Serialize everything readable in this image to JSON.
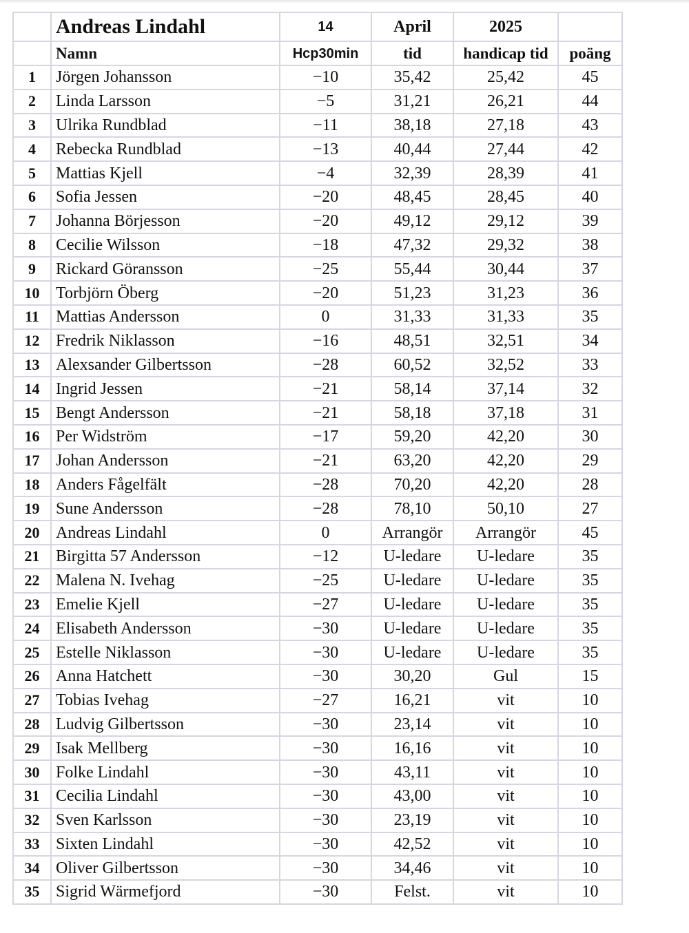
{
  "header": {
    "title": "Andreas Lindahl",
    "day": "14",
    "month": "April",
    "year": "2025",
    "columns": [
      "Namn",
      "Hcp30min",
      "tid",
      "handicap tid",
      "poäng"
    ]
  },
  "rows": [
    [
      "1",
      "Jörgen Johansson",
      "−10",
      "35,42",
      "25,42",
      "45"
    ],
    [
      "2",
      "Linda Larsson",
      "−5",
      "31,21",
      "26,21",
      "44"
    ],
    [
      "3",
      "Ulrika Rundblad",
      "−11",
      "38,18",
      "27,18",
      "43"
    ],
    [
      "4",
      "Rebecka Rundblad",
      "−13",
      "40,44",
      "27,44",
      "42"
    ],
    [
      "5",
      "Mattias Kjell",
      "−4",
      "32,39",
      "28,39",
      "41"
    ],
    [
      "6",
      "Sofia Jessen",
      "−20",
      "48,45",
      "28,45",
      "40"
    ],
    [
      "7",
      "Johanna Börjesson",
      "−20",
      "49,12",
      "29,12",
      "39"
    ],
    [
      "8",
      "Cecilie Wilsson",
      "−18",
      "47,32",
      "29,32",
      "38"
    ],
    [
      "9",
      "Rickard Göransson",
      "−25",
      "55,44",
      "30,44",
      "37"
    ],
    [
      "10",
      "Torbjörn Öberg",
      "−20",
      "51,23",
      "31,23",
      "36"
    ],
    [
      "11",
      "Mattias Andersson",
      "0",
      "31,33",
      "31,33",
      "35"
    ],
    [
      "12",
      "Fredrik Niklasson",
      "−16",
      "48,51",
      "32,51",
      "34"
    ],
    [
      "13",
      "Alexsander Gilbertsson",
      "−28",
      "60,52",
      "32,52",
      "33"
    ],
    [
      "14",
      "Ingrid Jessen",
      "−21",
      "58,14",
      "37,14",
      "32"
    ],
    [
      "15",
      "Bengt Andersson",
      "−21",
      "58,18",
      "37,18",
      "31"
    ],
    [
      "16",
      "Per Widström",
      "−17",
      "59,20",
      "42,20",
      "30"
    ],
    [
      "17",
      "Johan Andersson",
      "−21",
      "63,20",
      "42,20",
      "29"
    ],
    [
      "18",
      "Anders Fågelfält",
      "−28",
      "70,20",
      "42,20",
      "28"
    ],
    [
      "19",
      "Sune Andersson",
      "−28",
      "78,10",
      "50,10",
      "27"
    ],
    [
      "20",
      "Andreas Lindahl",
      "0",
      "Arrangör",
      "Arrangör",
      "45"
    ],
    [
      "21",
      "Birgitta 57 Andersson",
      "−12",
      "U-ledare",
      "U-ledare",
      "35"
    ],
    [
      "22",
      "Malena N. Ivehag",
      "−25",
      "U-ledare",
      "U-ledare",
      "35"
    ],
    [
      "23",
      "Emelie Kjell",
      "−27",
      "U-ledare",
      "U-ledare",
      "35"
    ],
    [
      "24",
      "Elisabeth Andersson",
      "−30",
      "U-ledare",
      "U-ledare",
      "35"
    ],
    [
      "25",
      "Estelle Niklasson",
      "−30",
      "U-ledare",
      "U-ledare",
      "35"
    ],
    [
      "26",
      "Anna Hatchett",
      "−30",
      "30,20",
      "Gul",
      "15"
    ],
    [
      "27",
      "Tobias Ivehag",
      "−27",
      "16,21",
      "vit",
      "10"
    ],
    [
      "28",
      "Ludvig Gilbertsson",
      "−30",
      "23,14",
      "vit",
      "10"
    ],
    [
      "29",
      "Isak Mellberg",
      "−30",
      "16,16",
      "vit",
      "10"
    ],
    [
      "30",
      "Folke Lindahl",
      "−30",
      "43,11",
      "vit",
      "10"
    ],
    [
      "31",
      "Cecilia Lindahl",
      "−30",
      "43,00",
      "vit",
      "10"
    ],
    [
      "32",
      "Sven Karlsson",
      "−30",
      "23,19",
      "vit",
      "10"
    ],
    [
      "33",
      "Sixten Lindahl",
      "−30",
      "42,52",
      "vit",
      "10"
    ],
    [
      "34",
      "Oliver Gilbertsson",
      "−30",
      "34,46",
      "vit",
      "10"
    ],
    [
      "35",
      "Sigrid Wärmefjord",
      "−30",
      "Felst.",
      "vit",
      "10"
    ]
  ]
}
